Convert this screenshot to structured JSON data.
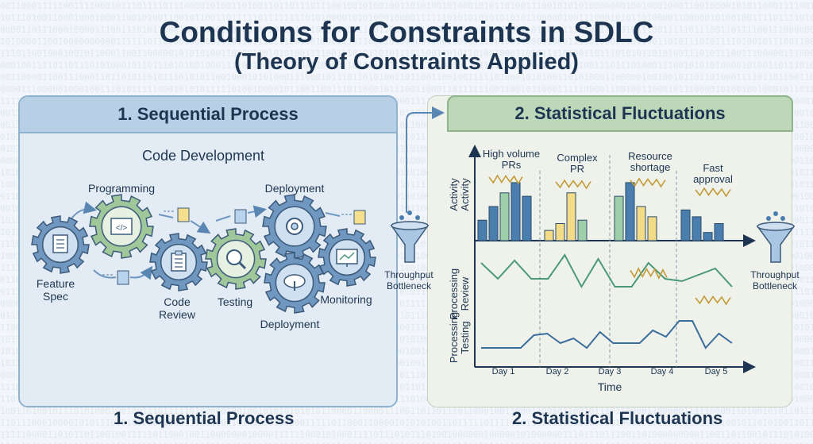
{
  "title": "Conditions for Constraints in SDLC",
  "subtitle": "(Theory of Constraints Applied)",
  "panel1": {
    "header": "1. Sequential Process",
    "section_title": "Code Development",
    "stages": {
      "feature_spec": "Feature\nSpec",
      "programming": "Programming",
      "code_review": "Code\nReview",
      "testing": "Testing",
      "deployment_top": "Deployment",
      "deployment_bottom": "Deployment",
      "monitoring": "Monitoring"
    }
  },
  "funnel_middle": "Throughput\nBottleneck",
  "panel2": {
    "header": "2. Statistical Fluctuations",
    "annotations": [
      "High volume\nPRs",
      "Complex\nPR",
      "Resource\nshortage",
      "Fast\napproval"
    ],
    "row_labels": [
      "Activity\nActivity",
      "Processing\nReview",
      "Processing\nTesting"
    ],
    "x_ticks": [
      "Day 1",
      "Day 2",
      "Day 3",
      "Day 4",
      "Day 5"
    ],
    "x_axis_label": "Time",
    "funnel_label": "Throughput\nBottleneck"
  },
  "chart_data": {
    "type": "bar",
    "categories": [
      "Day 1",
      "Day 2",
      "Day 3",
      "Day 4",
      "Day 5"
    ],
    "xlabel": "Time",
    "activity_bars": [
      {
        "day": "Day 1",
        "values": [
          3,
          5,
          7,
          8.5,
          6.5
        ]
      },
      {
        "day": "Day 2",
        "values": [
          1.5,
          2.5,
          7,
          3
        ]
      },
      {
        "day": "Day 3",
        "values": [
          6.5,
          8.5,
          5,
          3.5
        ]
      },
      {
        "day": "Day 4",
        "values": [
          4.5,
          3.5,
          1.2,
          2.5
        ]
      }
    ],
    "review_line": [
      4.5,
      2.5,
      4.8,
      2.5,
      2.5,
      5.5,
      1.5,
      5,
      1.5,
      1.5,
      4.5,
      2.5,
      2.2,
      3,
      3.8,
      1.5
    ],
    "testing_line": [
      1.2,
      1.2,
      1.2,
      1.2,
      2.8,
      3,
      1.8,
      2.4,
      1.2,
      3.2,
      1.8,
      1.8,
      1.8,
      3.4,
      2.6,
      4.6,
      4.6,
      1.2,
      3,
      1.8
    ],
    "colors": {
      "blue": "#4a7eaf",
      "green": "#9fcfa8",
      "yellow": "#f2dc88",
      "review_line": "#4a9a7a",
      "testing_line": "#3b6d9d",
      "fluctuation": "#c49a38"
    }
  }
}
